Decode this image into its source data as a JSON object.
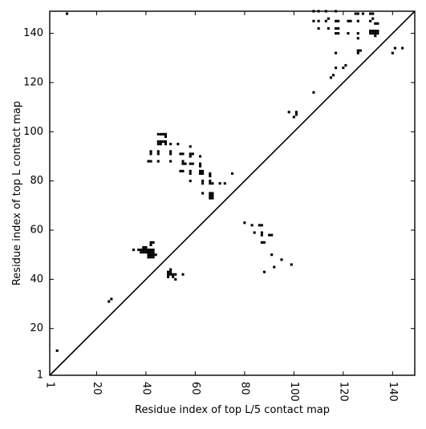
{
  "chart_data": {
    "type": "scatter",
    "title": "",
    "xlabel": "Residue index of top L/5 contact map",
    "ylabel": "Residue index of top L contact map",
    "xlim": [
      1,
      149
    ],
    "ylim": [
      1,
      149
    ],
    "x_ticks": [
      "1",
      "20",
      "40",
      "60",
      "80",
      "100",
      "120",
      "140"
    ],
    "y_ticks": [
      "1",
      "20",
      "40",
      "60",
      "80",
      "100",
      "120",
      "140"
    ],
    "x_tick_values": [
      1,
      20,
      40,
      60,
      80,
      100,
      120,
      140
    ],
    "y_tick_values": [
      1,
      20,
      40,
      60,
      80,
      100,
      120,
      140
    ],
    "diagonal": true,
    "grid": false,
    "legend": "none",
    "marker_color": "#000000",
    "series": [
      {
        "values": [
          [
            8,
            148
          ],
          [
            108,
            149
          ],
          [
            110,
            149
          ],
          [
            113,
            149
          ],
          [
            117,
            149
          ],
          [
            125,
            148
          ],
          [
            126,
            148
          ],
          [
            128,
            148
          ],
          [
            131,
            148
          ],
          [
            132,
            148
          ],
          [
            108,
            145
          ],
          [
            110,
            145
          ],
          [
            113,
            145
          ],
          [
            114,
            146
          ],
          [
            117,
            145
          ],
          [
            118,
            145
          ],
          [
            122,
            145
          ],
          [
            123,
            145
          ],
          [
            126,
            145
          ],
          [
            131,
            145
          ],
          [
            132,
            146
          ],
          [
            133,
            144
          ],
          [
            134,
            144
          ],
          [
            110,
            142
          ],
          [
            114,
            142
          ],
          [
            117,
            142
          ],
          [
            118,
            142
          ],
          [
            131,
            141
          ],
          [
            132,
            141
          ],
          [
            133,
            141
          ],
          [
            134,
            141
          ],
          [
            132,
            140
          ],
          [
            133,
            140
          ],
          [
            134,
            140
          ],
          [
            133,
            139
          ],
          [
            117,
            140
          ],
          [
            118,
            140
          ],
          [
            122,
            140
          ],
          [
            126,
            140
          ],
          [
            126,
            138
          ],
          [
            131,
            140
          ],
          [
            117,
            132
          ],
          [
            126,
            132
          ],
          [
            126,
            133
          ],
          [
            127,
            133
          ],
          [
            140,
            132
          ],
          [
            141,
            134
          ],
          [
            144,
            134
          ],
          [
            117,
            126
          ],
          [
            120,
            126
          ],
          [
            121,
            127
          ],
          [
            115,
            122
          ],
          [
            116,
            123
          ],
          [
            108,
            116
          ],
          [
            98,
            108
          ],
          [
            100,
            106
          ],
          [
            101,
            107
          ],
          [
            101,
            108
          ],
          [
            45,
            99
          ],
          [
            46,
            99
          ],
          [
            47,
            99
          ],
          [
            48,
            99
          ],
          [
            48,
            98
          ],
          [
            45,
            96
          ],
          [
            46,
            96
          ],
          [
            45,
            95
          ],
          [
            46,
            95
          ],
          [
            47,
            96
          ],
          [
            48,
            96
          ],
          [
            48,
            95
          ],
          [
            50,
            95
          ],
          [
            53,
            95
          ],
          [
            58,
            94
          ],
          [
            42,
            92
          ],
          [
            45,
            92
          ],
          [
            50,
            92
          ],
          [
            42,
            91
          ],
          [
            45,
            91
          ],
          [
            50,
            91
          ],
          [
            54,
            91
          ],
          [
            55,
            91
          ],
          [
            58,
            91
          ],
          [
            59,
            91
          ],
          [
            58,
            90
          ],
          [
            62,
            90
          ],
          [
            41,
            88
          ],
          [
            42,
            88
          ],
          [
            45,
            88
          ],
          [
            50,
            88
          ],
          [
            55,
            88
          ],
          [
            55,
            87
          ],
          [
            56,
            87
          ],
          [
            58,
            87
          ],
          [
            59,
            87
          ],
          [
            62,
            87
          ],
          [
            62,
            86
          ],
          [
            54,
            84
          ],
          [
            55,
            84
          ],
          [
            58,
            84
          ],
          [
            62,
            84
          ],
          [
            63,
            84
          ],
          [
            63,
            83
          ],
          [
            62,
            83
          ],
          [
            58,
            83
          ],
          [
            66,
            83
          ],
          [
            66,
            82
          ],
          [
            75,
            83
          ],
          [
            58,
            80
          ],
          [
            63,
            80
          ],
          [
            63,
            79
          ],
          [
            66,
            80
          ],
          [
            66,
            79
          ],
          [
            67,
            79
          ],
          [
            70,
            79
          ],
          [
            72,
            79
          ],
          [
            63,
            75
          ],
          [
            66,
            75
          ],
          [
            67,
            75
          ],
          [
            66,
            74
          ],
          [
            67,
            74
          ],
          [
            66,
            73
          ],
          [
            67,
            73
          ],
          [
            80,
            63
          ],
          [
            83,
            62
          ],
          [
            86,
            62
          ],
          [
            87,
            62
          ],
          [
            84,
            59
          ],
          [
            87,
            59
          ],
          [
            87,
            58
          ],
          [
            90,
            58
          ],
          [
            91,
            58
          ],
          [
            87,
            55
          ],
          [
            88,
            55
          ],
          [
            91,
            50
          ],
          [
            95,
            48
          ],
          [
            92,
            45
          ],
          [
            99,
            46
          ],
          [
            88,
            43
          ],
          [
            35,
            52
          ],
          [
            37,
            52
          ],
          [
            38,
            52
          ],
          [
            38,
            51
          ],
          [
            39,
            53
          ],
          [
            39,
            52
          ],
          [
            39,
            51
          ],
          [
            40,
            53
          ],
          [
            40,
            52
          ],
          [
            40,
            51
          ],
          [
            41,
            52
          ],
          [
            41,
            51
          ],
          [
            41,
            50
          ],
          [
            41,
            49
          ],
          [
            42,
            52
          ],
          [
            42,
            51
          ],
          [
            42,
            50
          ],
          [
            42,
            49
          ],
          [
            43,
            52
          ],
          [
            43,
            51
          ],
          [
            43,
            50
          ],
          [
            43,
            49
          ],
          [
            44,
            50
          ],
          [
            42,
            55
          ],
          [
            43,
            55
          ],
          [
            42,
            54
          ],
          [
            49,
            43
          ],
          [
            49,
            42
          ],
          [
            49,
            41
          ],
          [
            50,
            44
          ],
          [
            50,
            43
          ],
          [
            50,
            42
          ],
          [
            51,
            42
          ],
          [
            51,
            41
          ],
          [
            52,
            42
          ],
          [
            52,
            40
          ],
          [
            55,
            42
          ],
          [
            25,
            31
          ],
          [
            26,
            32
          ],
          [
            4,
            11
          ]
        ]
      }
    ]
  }
}
